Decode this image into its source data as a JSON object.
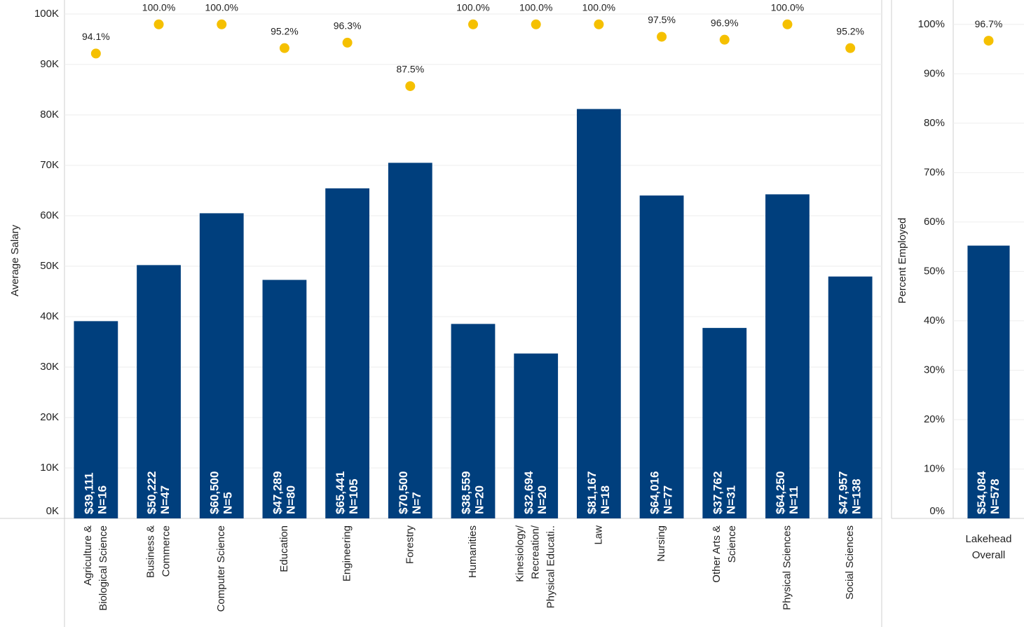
{
  "chart_data": [
    {
      "type": "bar",
      "ylabel": "Average Salary",
      "categories": [
        "Agriculture &\nBiological Science",
        "Business &\nCommerce",
        "Computer Science",
        "Education",
        "Engineering",
        "Forestry",
        "Humanities",
        "Kinesiology/\nRecreation/\nPhysical Educati..",
        "Law",
        "Nursing",
        "Other Arts &\nScience",
        "Physical Sciences",
        "Social Sciences"
      ],
      "series": [
        {
          "name": "Average Salary",
          "color": "#003f7d",
          "values": [
            39111,
            50222,
            60500,
            47289,
            65441,
            70500,
            38559,
            32694,
            81167,
            64016,
            37762,
            64250,
            47957
          ],
          "value_labels": [
            "$39,111",
            "$50,222",
            "$60,500",
            "$47,289",
            "$65,441",
            "$70,500",
            "$38,559",
            "$32,694",
            "$81,167",
            "$64,016",
            "$37,762",
            "$64,250",
            "$47,957"
          ],
          "n_labels": [
            "N=16",
            "N=47",
            "N=5",
            "N=80",
            "N=105",
            "N=7",
            "N=20",
            "N=20",
            "N=18",
            "N=77",
            "N=31",
            "N=11",
            "N=138"
          ]
        },
        {
          "name": "Percent Employed",
          "color": "#f5c000",
          "axis": "y2",
          "values": [
            94.1,
            100,
            100,
            95.2,
            96.3,
            87.5,
            100,
            100,
            100,
            97.5,
            96.9,
            100,
            95.2
          ],
          "value_labels": [
            "94.1%",
            "100.0%",
            "100.0%",
            "95.2%",
            "96.3%",
            "87.5%",
            "100.0%",
            "100.0%",
            "100.0%",
            "97.5%",
            "96.9%",
            "100.0%",
            "95.2%"
          ]
        }
      ],
      "ylim": [
        0,
        100000
      ],
      "yticks": [
        {
          "value": 0,
          "label": "0K"
        },
        {
          "value": 10000,
          "label": "10K"
        },
        {
          "value": 20000,
          "label": "20K"
        },
        {
          "value": 30000,
          "label": "30K"
        },
        {
          "value": 40000,
          "label": "40K"
        },
        {
          "value": 50000,
          "label": "50K"
        },
        {
          "value": 60000,
          "label": "60K"
        },
        {
          "value": 70000,
          "label": "70K"
        },
        {
          "value": 80000,
          "label": "80K"
        },
        {
          "value": 90000,
          "label": "90K"
        },
        {
          "value": 100000,
          "label": "100K"
        }
      ],
      "y2lim": [
        0,
        102.1
      ],
      "grid": true
    },
    {
      "type": "bar",
      "ylabel": "Percent Employed",
      "categories": [
        "Lakehead\nOverall"
      ],
      "series": [
        {
          "name": "Average Salary",
          "color": "#003f7d",
          "axis": "y2",
          "values": [
            54084
          ],
          "value_labels": [
            "$54,084"
          ],
          "n_labels": [
            "N=578"
          ]
        },
        {
          "name": "Percent Employed",
          "color": "#f5c000",
          "values": [
            96.7
          ],
          "value_labels": [
            "96.7%"
          ]
        }
      ],
      "ylim": [
        0,
        102.1
      ],
      "yticks": [
        {
          "value": 0,
          "label": "0%"
        },
        {
          "value": 10,
          "label": "10%"
        },
        {
          "value": 20,
          "label": "20%"
        },
        {
          "value": 30,
          "label": "30%"
        },
        {
          "value": 40,
          "label": "40%"
        },
        {
          "value": 50,
          "label": "50%"
        },
        {
          "value": 60,
          "label": "60%"
        },
        {
          "value": 70,
          "label": "70%"
        },
        {
          "value": 80,
          "label": "80%"
        },
        {
          "value": 90,
          "label": "90%"
        },
        {
          "value": 100,
          "label": "100%"
        }
      ],
      "y2lim": [
        0,
        100000
      ],
      "grid": true
    }
  ]
}
